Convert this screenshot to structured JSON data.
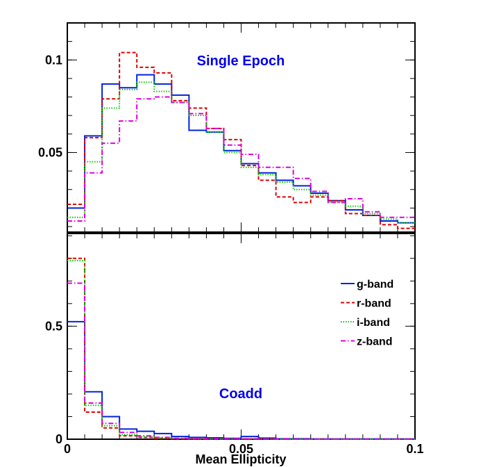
{
  "chart_data": {
    "type": "line",
    "step": true,
    "x_edges": [
      0,
      0.005,
      0.01,
      0.015,
      0.02,
      0.025,
      0.03,
      0.035,
      0.04,
      0.045,
      0.05,
      0.055,
      0.06,
      0.065,
      0.07,
      0.075,
      0.08,
      0.085,
      0.09,
      0.095,
      0.1
    ],
    "xlabel": "Mean Ellipticity",
    "xlim": [
      0,
      0.1
    ],
    "xticks": [
      {
        "value": 0,
        "label": "0"
      },
      {
        "value": 0.05,
        "label": "0.05"
      },
      {
        "value": 0.1,
        "label": "0.1"
      }
    ],
    "panels": [
      {
        "id": "top",
        "title": "Single Epoch",
        "ylim": [
          0.007,
          0.12
        ],
        "yticks": [
          {
            "value": 0.05,
            "label": "0.05"
          },
          {
            "value": 0.1,
            "label": "0.1"
          }
        ],
        "series": [
          {
            "name": "g-band",
            "color": "#0022dd",
            "dash": "solid",
            "values": [
              0.02,
              0.059,
              0.087,
              0.085,
              0.092,
              0.087,
              0.081,
              0.062,
              0.061,
              0.051,
              0.044,
              0.039,
              0.035,
              0.032,
              0.028,
              0.024,
              0.019,
              0.016,
              0.013,
              0.012
            ]
          },
          {
            "name": "r-band",
            "color": "#dd0000",
            "dash": "dashed",
            "values": [
              0.022,
              0.058,
              0.079,
              0.104,
              0.096,
              0.093,
              0.078,
              0.074,
              0.063,
              0.057,
              0.043,
              0.035,
              0.026,
              0.023,
              0.026,
              0.024,
              0.017,
              0.016,
              0.011,
              0.009
            ]
          },
          {
            "name": "i-band",
            "color": "#00cc00",
            "dash": "dotted",
            "values": [
              0.015,
              0.045,
              0.074,
              0.084,
              0.088,
              0.083,
              0.077,
              0.07,
              0.061,
              0.05,
              0.042,
              0.038,
              0.034,
              0.03,
              0.027,
              0.023,
              0.021,
              0.017,
              0.014,
              0.012
            ]
          },
          {
            "name": "z-band",
            "color": "#dd00dd",
            "dash": "dashdot",
            "values": [
              0.013,
              0.039,
              0.055,
              0.067,
              0.079,
              0.08,
              0.077,
              0.071,
              0.063,
              0.054,
              0.049,
              0.042,
              0.042,
              0.036,
              0.029,
              0.023,
              0.025,
              0.018,
              0.015,
              0.015
            ]
          }
        ]
      },
      {
        "id": "bottom",
        "title": "Coadd",
        "ylim": [
          0,
          0.91
        ],
        "yticks": [
          {
            "value": 0,
            "label": "0"
          },
          {
            "value": 0.5,
            "label": "0.5"
          }
        ],
        "series": [
          {
            "name": "g-band",
            "color": "#0022dd",
            "dash": "solid",
            "values": [
              0.52,
              0.21,
              0.1,
              0.045,
              0.035,
              0.025,
              0.012,
              0.008,
              0.006,
              0.004,
              0.012,
              0.005,
              0.002,
              0.002,
              0.001,
              0.001,
              0.001,
              0.001,
              0.001,
              0.001
            ]
          },
          {
            "name": "r-band",
            "color": "#dd0000",
            "dash": "dashed",
            "values": [
              0.8,
              0.12,
              0.05,
              0.015,
              0.008,
              0.004,
              0.002,
              0.001,
              0.001,
              0.001,
              0.001,
              0.001,
              0,
              0,
              0,
              0,
              0,
              0,
              0,
              0
            ]
          },
          {
            "name": "i-band",
            "color": "#00cc00",
            "dash": "dotted",
            "values": [
              0.79,
              0.15,
              0.06,
              0.02,
              0.01,
              0.005,
              0.003,
              0.002,
              0.001,
              0.001,
              0.001,
              0.001,
              0,
              0,
              0,
              0,
              0,
              0,
              0,
              0
            ]
          },
          {
            "name": "z-band",
            "color": "#dd00dd",
            "dash": "dashdot",
            "values": [
              0.69,
              0.16,
              0.07,
              0.03,
              0.015,
              0.008,
              0.004,
              0.003,
              0.002,
              0.002,
              0.002,
              0.001,
              0.001,
              0,
              0,
              0,
              0,
              0,
              0,
              0
            ]
          }
        ]
      }
    ],
    "legend": {
      "placement": "right",
      "panel": "bottom",
      "entries": [
        "g-band",
        "r-band",
        "i-band",
        "z-band"
      ]
    }
  }
}
